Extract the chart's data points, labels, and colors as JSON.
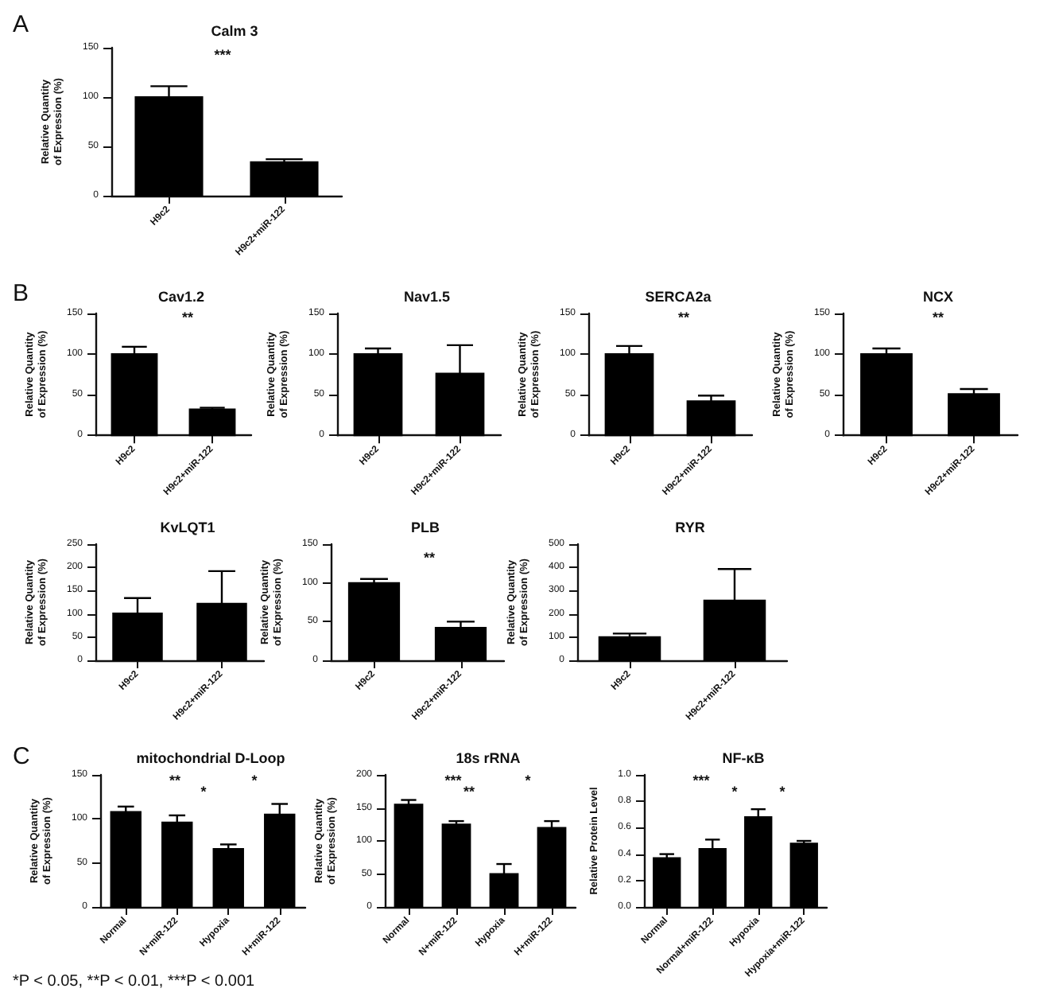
{
  "chart_data": [
    {
      "type": "bar",
      "title": "Calm 3",
      "ylabel": "Relative Quantity\nof Expression (%)",
      "categories": [
        "H9c2",
        "H9c2+miR-122"
      ],
      "values": [
        100,
        34
      ],
      "errors": [
        [
          100,
          111
        ],
        [
          34,
          37
        ]
      ],
      "color": "#000000",
      "ylim": [
        0,
        150
      ],
      "yticks": [
        0,
        50,
        100,
        150
      ],
      "annotations": [
        "A",
        "***"
      ]
    },
    {
      "type": "bar",
      "title": "Cav1.2",
      "ylabel": "Relative Quantity\nof Expression (%)",
      "categories": [
        "H9c2",
        "H9c2+miR-122"
      ],
      "values": [
        100,
        32
      ],
      "errors": [
        [
          100,
          109
        ],
        [
          32,
          34
        ]
      ],
      "color": "#000000",
      "ylim": [
        0,
        150
      ],
      "yticks": [
        0,
        50,
        100,
        150
      ],
      "annotations": [
        "B",
        "**"
      ]
    },
    {
      "type": "bar",
      "title": "Nav1.5",
      "ylabel": "Relative Quantity\nof Expression (%)",
      "categories": [
        "H9c2",
        "H9c2+miR-122"
      ],
      "values": [
        100,
        76
      ],
      "errors": [
        [
          100,
          107
        ],
        [
          76,
          111
        ]
      ],
      "color": "#000000",
      "ylim": [
        0,
        150
      ],
      "yticks": [
        0,
        50,
        100,
        150
      ]
    },
    {
      "type": "bar",
      "title": "SERCA2a",
      "ylabel": "Relative Quantity\nof Expression (%)",
      "categories": [
        "H9c2",
        "H9c2+miR-122"
      ],
      "values": [
        100,
        42
      ],
      "errors": [
        [
          100,
          110
        ],
        [
          42,
          49
        ]
      ],
      "color": "#000000",
      "ylim": [
        0,
        150
      ],
      "yticks": [
        0,
        50,
        100,
        150
      ],
      "annotations": [
        "**"
      ]
    },
    {
      "type": "bar",
      "title": "NCX",
      "ylabel": "Relative Quantity\nof Expression (%)",
      "categories": [
        "H9c2",
        "H9c2+miR-122"
      ],
      "values": [
        100,
        51
      ],
      "errors": [
        [
          100,
          107
        ],
        [
          51,
          57
        ]
      ],
      "color": "#000000",
      "ylim": [
        0,
        150
      ],
      "yticks": [
        0,
        50,
        100,
        150
      ],
      "annotations": [
        "**"
      ]
    },
    {
      "type": "bar",
      "title": "KvLQT1",
      "ylabel": "Relative Quantity\nof Expression (%)",
      "categories": [
        "H9c2",
        "H9c2+miR-122"
      ],
      "values": [
        101,
        122
      ],
      "errors": [
        [
          101,
          134
        ],
        [
          122,
          192
        ]
      ],
      "color": "#000000",
      "ylim": [
        0,
        250
      ],
      "yticks": [
        0,
        50,
        100,
        150,
        200,
        250
      ]
    },
    {
      "type": "bar",
      "title": "PLB",
      "ylabel": "Relative Quantity\nof Expression (%)",
      "categories": [
        "H9c2",
        "H9c2+miR-122"
      ],
      "values": [
        100,
        42
      ],
      "errors": [
        [
          100,
          105
        ],
        [
          42,
          50
        ]
      ],
      "color": "#000000",
      "ylim": [
        0,
        150
      ],
      "yticks": [
        0,
        50,
        100,
        150
      ],
      "annotations": [
        "**"
      ]
    },
    {
      "type": "bar",
      "title": "RYR",
      "ylabel": "Relative Quantity\nof Expression (%)",
      "categories": [
        "H9c2",
        "H9c2+miR-122"
      ],
      "values": [
        100,
        258
      ],
      "errors": [
        [
          100,
          115
        ],
        [
          258,
          393
        ]
      ],
      "color": "#000000",
      "ylim": [
        0,
        500
      ],
      "yticks": [
        0,
        100,
        200,
        300,
        400,
        500
      ]
    },
    {
      "type": "bar",
      "title": "mitochondrial D-Loop",
      "ylabel": "Relative Quantity\nof Expression (%)",
      "categories": [
        "Normal",
        "N+miR-122",
        "Hypoxia",
        "H+miR-122"
      ],
      "values": [
        108,
        96,
        66,
        105
      ],
      "errors": [
        [
          108,
          114
        ],
        [
          96,
          104
        ],
        [
          66,
          71
        ],
        [
          105,
          117
        ]
      ],
      "color": "#000000",
      "ylim": [
        0,
        150
      ],
      "yticks": [
        0,
        50,
        100,
        150
      ],
      "annotations": [
        "C",
        "**",
        "*",
        "*",
        "*P < 0.05, **P < 0.01, ***P < 0.001"
      ]
    },
    {
      "type": "bar",
      "title": "18s rRNA",
      "ylabel": "Relative Quantity\nof Expression (%)",
      "categories": [
        "Normal",
        "N+miR-122",
        "Hypoxia",
        "H+miR-122"
      ],
      "values": [
        155,
        125,
        50,
        120
      ],
      "errors": [
        [
          155,
          162
        ],
        [
          125,
          130
        ],
        [
          50,
          65
        ],
        [
          120,
          130
        ]
      ],
      "color": "#000000",
      "ylim": [
        0,
        200
      ],
      "yticks": [
        0,
        50,
        100,
        150,
        200
      ],
      "annotations": [
        "***",
        "**",
        "*"
      ]
    },
    {
      "type": "bar",
      "title": "NF-κB",
      "ylabel": "Relative Protein Level",
      "categories": [
        "Normal",
        "Normal+miR-122",
        "Hypoxia",
        "Hypoxia+miR-122"
      ],
      "values": [
        0.37,
        0.44,
        0.68,
        0.48
      ],
      "errors": [
        [
          0.37,
          0.4
        ],
        [
          0.44,
          0.51
        ],
        [
          0.68,
          0.74
        ],
        [
          0.48,
          0.5
        ]
      ],
      "color": "#000000",
      "ylim": [
        0,
        1
      ],
      "yticks": [
        {
          "value": 0,
          "label": "0.0"
        },
        0.2,
        0.4,
        0.6,
        0.8,
        {
          "value": 1,
          "label": "1.0"
        }
      ],
      "annotations": [
        "***",
        "*",
        "*"
      ]
    }
  ]
}
